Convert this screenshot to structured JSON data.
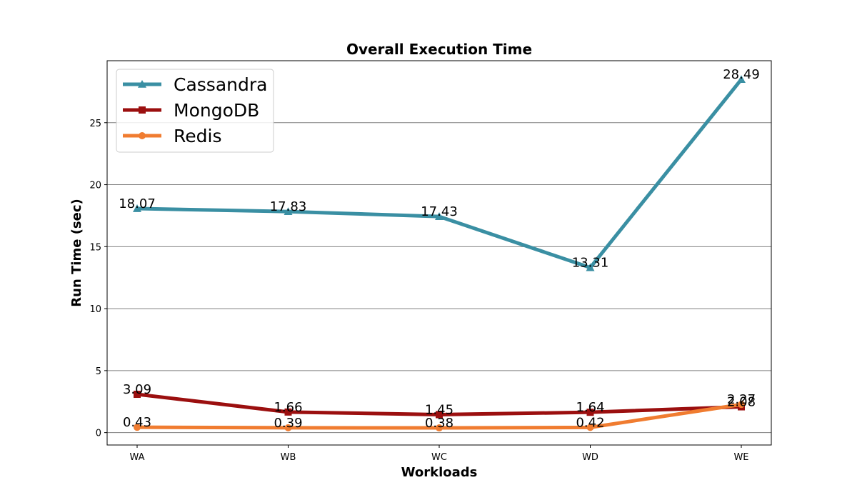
{
  "chart_data": {
    "type": "line",
    "title": "Overall Execution Time",
    "xlabel": "Workloads",
    "ylabel": "Run Time (sec)",
    "categories": [
      "WA",
      "WB",
      "WC",
      "WD",
      "WE"
    ],
    "ylim": [
      -1,
      30
    ],
    "yticks": [
      0,
      5,
      10,
      15,
      20,
      25
    ],
    "grid": "horizontal",
    "legend_position": "top-left",
    "series": [
      {
        "name": "Cassandra",
        "color": "#3a8fa3",
        "marker": "triangle",
        "values": [
          18.07,
          17.83,
          17.43,
          13.31,
          28.49
        ],
        "labels": [
          "18.07",
          "17.83",
          "17.43",
          "13.31",
          "28.49"
        ]
      },
      {
        "name": "MongoDB",
        "color": "#9b0f0f",
        "marker": "square",
        "values": [
          3.09,
          1.66,
          1.45,
          1.64,
          2.08
        ],
        "labels": [
          "3.09",
          "1.66",
          "1.45",
          "1.64",
          "2.08"
        ]
      },
      {
        "name": "Redis",
        "color": "#f07c30",
        "marker": "circle",
        "values": [
          0.43,
          0.39,
          0.38,
          0.42,
          2.27
        ],
        "labels": [
          "0.43",
          "0.39",
          "0.38",
          "0.42",
          "2.27"
        ]
      }
    ]
  }
}
